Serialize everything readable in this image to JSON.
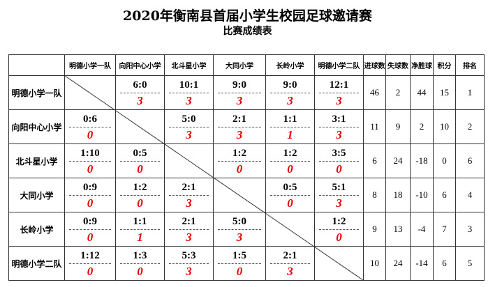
{
  "header": {
    "title": "2020年衡南县首届小学生校园足球邀请赛",
    "subtitle": "比赛成绩表"
  },
  "table": {
    "columns": [
      "明德小学一队",
      "向阳中心小学",
      "北斗星小学",
      "大同小学",
      "长岭小学",
      "明德小学二队",
      "进球数",
      "失球数",
      "净胜球",
      "积分",
      "排名"
    ],
    "rows": [
      {
        "team": "明德小学一队",
        "matches": [
          null,
          {
            "score": "6:0",
            "points": 3
          },
          {
            "score": "10:1",
            "points": 3
          },
          {
            "score": "9:0",
            "points": 3
          },
          {
            "score": "9:0",
            "points": 3
          },
          {
            "score": "12:1",
            "points": 3
          }
        ],
        "stats": [
          46,
          2,
          44,
          15,
          1
        ]
      },
      {
        "team": "向阳中心小学",
        "matches": [
          {
            "score": "0:6",
            "points": 0
          },
          null,
          {
            "score": "5:0",
            "points": 3
          },
          {
            "score": "2:1",
            "points": 3
          },
          {
            "score": "1:1",
            "points": 1
          },
          {
            "score": "3:1",
            "points": 3
          }
        ],
        "stats": [
          11,
          9,
          2,
          10,
          2
        ]
      },
      {
        "team": "北斗星小学",
        "matches": [
          {
            "score": "1:10",
            "points": 0
          },
          {
            "score": "0:5",
            "points": 0
          },
          null,
          {
            "score": "1:2",
            "points": 0
          },
          {
            "score": "1:2",
            "points": 0
          },
          {
            "score": "3:5",
            "points": 0
          }
        ],
        "stats": [
          6,
          24,
          -18,
          0,
          6
        ]
      },
      {
        "team": "大同小学",
        "matches": [
          {
            "score": "0:9",
            "points": 0
          },
          {
            "score": "1:2",
            "points": 0
          },
          {
            "score": "2:1",
            "points": 3
          },
          null,
          {
            "score": "0:5",
            "points": 0
          },
          {
            "score": "5:1",
            "points": 3
          }
        ],
        "stats": [
          8,
          18,
          -10,
          6,
          4
        ]
      },
      {
        "team": "长岭小学",
        "matches": [
          {
            "score": "0:9",
            "points": 0
          },
          {
            "score": "1:1",
            "points": 1
          },
          {
            "score": "2:1",
            "points": 3
          },
          {
            "score": "5:0",
            "points": 3
          },
          null,
          {
            "score": "1:2",
            "points": 0
          }
        ],
        "stats": [
          9,
          13,
          -4,
          7,
          3
        ]
      },
      {
        "team": "明德小学二队",
        "matches": [
          {
            "score": "1:12",
            "points": 0
          },
          {
            "score": "1:3",
            "points": 0
          },
          {
            "score": "5:3",
            "points": 3
          },
          {
            "score": "1:5",
            "points": 0
          },
          {
            "score": "2:1",
            "points": 3
          },
          null
        ],
        "stats": [
          10,
          24,
          -14,
          6,
          5
        ]
      }
    ]
  }
}
